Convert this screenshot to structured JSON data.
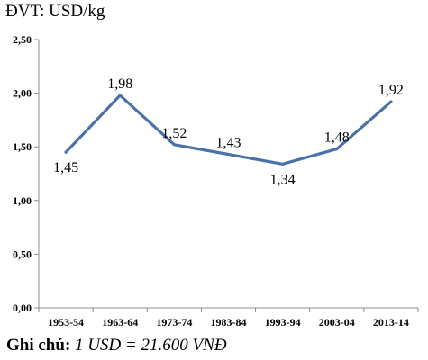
{
  "unit_label": "ĐVT: USD/kg",
  "note": {
    "key": "Ghi chú:",
    "text": "1 USD = 21.600 VNĐ"
  },
  "chart_data": {
    "type": "line",
    "title": "",
    "xlabel": "",
    "ylabel": "ĐVT: USD/kg",
    "categories": [
      "1953-54",
      "1963-64",
      "1973-74",
      "1983-84",
      "1993-94",
      "2003-04",
      "2013-14"
    ],
    "series": [
      {
        "values": [
          1.45,
          1.98,
          1.52,
          1.43,
          1.34,
          1.48,
          1.92
        ],
        "color": "#4A72A8"
      }
    ],
    "data_labels": [
      "1,45",
      "1,98",
      "1,52",
      "1,43",
      "1,34",
      "1,48",
      "1,92"
    ],
    "label_position": [
      "below",
      "above",
      "above",
      "above",
      "below",
      "above",
      "above"
    ],
    "y_ticks": [
      0,
      0.5,
      1.0,
      1.5,
      2.0,
      2.5
    ],
    "y_tick_labels": [
      "0,00",
      "0,50",
      "1,00",
      "1,50",
      "2,00",
      "2,50"
    ],
    "ylim": [
      0,
      2.5
    ],
    "grid": false,
    "legend": "none"
  }
}
